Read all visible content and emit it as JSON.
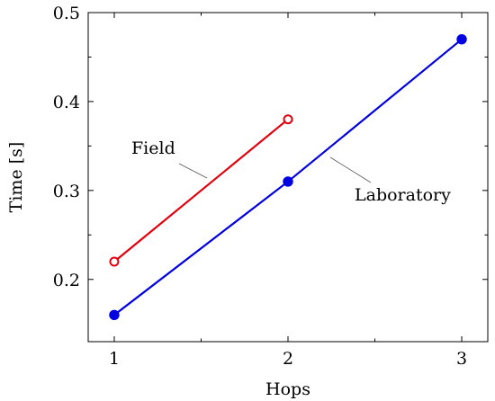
{
  "chart_data": {
    "type": "line",
    "title": "",
    "xlabel": "Hops",
    "ylabel": "Time [s]",
    "xlim": [
      0.85,
      3.15
    ],
    "ylim": [
      0.13,
      0.5
    ],
    "x_ticks": [
      1,
      2,
      3
    ],
    "y_ticks": [
      0.2,
      0.3,
      0.4,
      0.5
    ],
    "x_tick_labels": [
      "1",
      "2",
      "3"
    ],
    "y_tick_labels": [
      "0.2",
      "0.3",
      "0.4",
      "0.5"
    ],
    "grid": false,
    "legend": "none",
    "series": [
      {
        "name": "Field",
        "color": "#e3000f",
        "marker": "open-circle",
        "x": [
          1,
          2
        ],
        "y": [
          0.22,
          0.38
        ]
      },
      {
        "name": "Laboratory",
        "color": "#0000e0",
        "marker": "filled-circle",
        "x": [
          1,
          2,
          3
        ],
        "y": [
          0.16,
          0.31,
          0.47
        ]
      }
    ]
  }
}
